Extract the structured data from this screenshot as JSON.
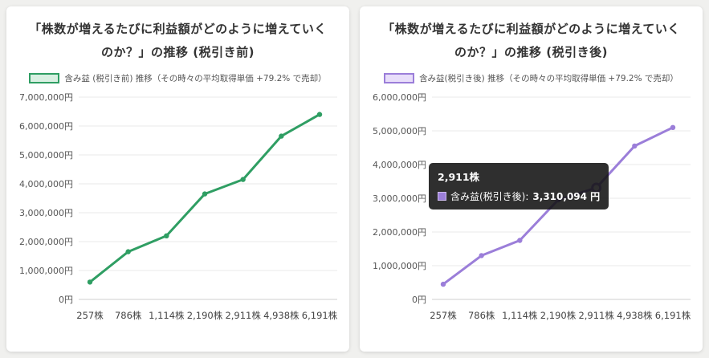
{
  "page": {
    "background": "#f0f0ee"
  },
  "charts": [
    {
      "title": "「株数が増えるたびに利益額がどのように増えていくのか？」の推移 (税引き前)",
      "legend_label": "含み益 (税引き前) 推移（その時々の平均取得単価 +79.2% で売却）",
      "color": "#2f9e63",
      "fill": "#d9f0e2",
      "chart_data": {
        "type": "line",
        "categories": [
          "257株",
          "786株",
          "1,114株",
          "2,190株",
          "2,911株",
          "4,938株",
          "6,191株"
        ],
        "values": [
          600000,
          1650000,
          2200000,
          3650000,
          4150000,
          5650000,
          6400000
        ],
        "ylim": [
          0,
          7000000
        ],
        "ytick_values": [
          0,
          1000000,
          2000000,
          3000000,
          4000000,
          5000000,
          6000000,
          7000000
        ],
        "yticks": [
          "0円",
          "1,000,000円",
          "2,000,000円",
          "3,000,000円",
          "4,000,000円",
          "5,000,000円",
          "6,000,000円",
          "7,000,000円"
        ],
        "grid": "horizontal",
        "legend_position": "top"
      }
    },
    {
      "title": "「株数が増えるたびに利益額がどのように増えていくのか？」の推移 (税引き後)",
      "legend_label": "含み益(税引き後) 推移（その時々の平均取得単価 +79.2% で売却）",
      "color": "#9b7ed9",
      "fill": "#e8defa",
      "active_index": 4,
      "tooltip": {
        "title": "2,911株",
        "series_label": "含み益(税引き後):",
        "value": "3,310,094 円"
      },
      "chart_data": {
        "type": "line",
        "categories": [
          "257株",
          "786株",
          "1,114株",
          "2,190株",
          "2,911株",
          "4,938株",
          "6,191株"
        ],
        "values": [
          450000,
          1300000,
          1750000,
          2950000,
          3310094,
          4550000,
          5100000
        ],
        "ylim": [
          0,
          6000000
        ],
        "ytick_values": [
          0,
          1000000,
          2000000,
          3000000,
          4000000,
          5000000,
          6000000
        ],
        "yticks": [
          "0円",
          "1,000,000円",
          "2,000,000円",
          "3,000,000円",
          "4,000,000円",
          "5,000,000円",
          "6,000,000円"
        ],
        "grid": "horizontal",
        "legend_position": "top"
      }
    }
  ]
}
